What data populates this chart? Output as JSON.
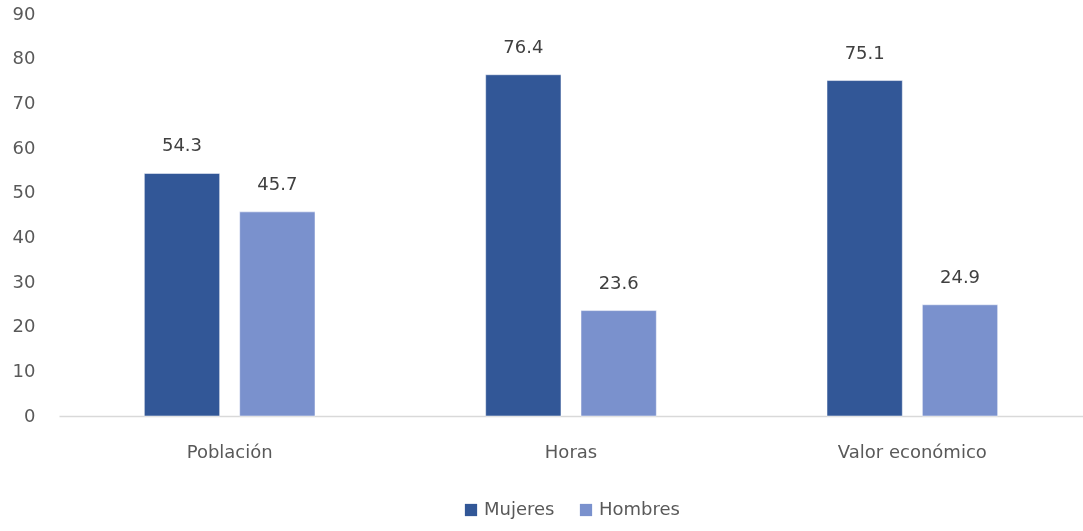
{
  "chart_data": {
    "type": "bar",
    "categories": [
      "Población",
      "Horas",
      "Valor económico"
    ],
    "series": [
      {
        "name": "Mujeres",
        "color": "#325797",
        "values": [
          54.3,
          76.4,
          75.1
        ]
      },
      {
        "name": "Hombres",
        "color": "#7a91cd",
        "values": [
          45.7,
          23.6,
          24.9
        ]
      }
    ],
    "ylim": [
      0,
      90
    ],
    "yticks": [
      0,
      10,
      20,
      30,
      40,
      50,
      60,
      70,
      80,
      90
    ],
    "data_labels": true,
    "legend": "bottom"
  }
}
